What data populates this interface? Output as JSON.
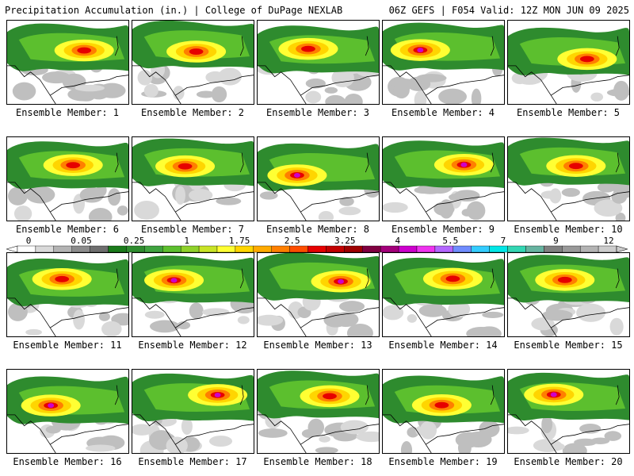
{
  "header": {
    "title": "Precipitation Accumulation (in.) | College of DuPage NEXLAB",
    "run_info": "06Z GEFS | F054 Valid: 12Z MON JUN 09 2025"
  },
  "colorbar": {
    "labels": [
      "0",
      "0.05",
      "0.25",
      "1",
      "1.75",
      "2.5",
      "3.25",
      "4",
      "5.5",
      "7",
      "9",
      "12"
    ],
    "colors": [
      "#ffffff",
      "#d9d9d9",
      "#b3b3b3",
      "#8c8c8c",
      "#6e6e6e",
      "#1a7a1a",
      "#2e8b2e",
      "#3fa33f",
      "#5cbf2e",
      "#8fd12a",
      "#c8e326",
      "#ffff33",
      "#ffd500",
      "#ffaa00",
      "#ff7f00",
      "#ff4d00",
      "#e60000",
      "#c20000",
      "#9e0000",
      "#800040",
      "#a3007a",
      "#cc00cc",
      "#ee33ee",
      "#b366ff",
      "#6f8cff",
      "#33ccff",
      "#00e6e6",
      "#33d6b3",
      "#66b3a0",
      "#808080",
      "#999999",
      "#b3b3b3",
      "#cccccc"
    ]
  },
  "members": [
    {
      "label": "Ensemble Member: 1"
    },
    {
      "label": "Ensemble Member: 2"
    },
    {
      "label": "Ensemble Member: 3"
    },
    {
      "label": "Ensemble Member: 4"
    },
    {
      "label": "Ensemble Member: 5"
    },
    {
      "label": "Ensemble Member: 6"
    },
    {
      "label": "Ensemble Member: 7"
    },
    {
      "label": "Ensemble Member: 8"
    },
    {
      "label": "Ensemble Member: 9"
    },
    {
      "label": "Ensemble Member: 10"
    },
    {
      "label": "Ensemble Member: 11"
    },
    {
      "label": "Ensemble Member: 12"
    },
    {
      "label": "Ensemble Member: 13"
    },
    {
      "label": "Ensemble Member: 14"
    },
    {
      "label": "Ensemble Member: 15"
    },
    {
      "label": "Ensemble Member: 16"
    },
    {
      "label": "Ensemble Member: 17"
    },
    {
      "label": "Ensemble Member: 18"
    },
    {
      "label": "Ensemble Member: 19"
    },
    {
      "label": "Ensemble Member: 20"
    }
  ]
}
